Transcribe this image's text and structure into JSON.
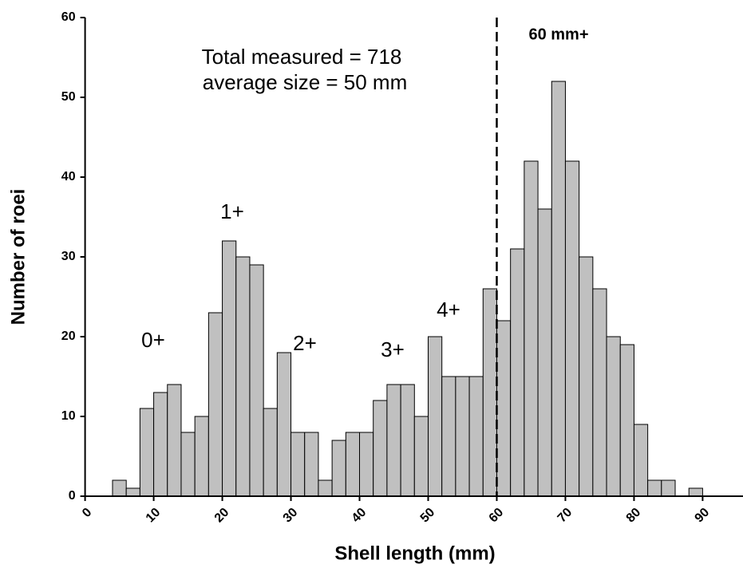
{
  "chart_data": {
    "type": "histogram",
    "x_label": "Shell length (mm)",
    "y_label": "Number of roei",
    "bins": [
      4,
      6,
      8,
      10,
      12,
      14,
      16,
      18,
      20,
      22,
      24,
      26,
      28,
      30,
      32,
      34,
      36,
      38,
      40,
      42,
      44,
      46,
      48,
      50,
      52,
      54,
      56,
      58,
      60,
      62,
      64,
      66,
      68,
      70,
      72,
      74,
      76,
      78,
      80,
      82,
      84,
      86,
      88,
      90
    ],
    "counts": [
      2,
      1,
      11,
      13,
      14,
      8,
      10,
      23,
      32,
      30,
      29,
      11,
      18,
      8,
      8,
      2,
      7,
      8,
      8,
      12,
      14,
      14,
      10,
      20,
      15,
      15,
      15,
      26,
      22,
      31,
      42,
      36,
      52,
      42,
      30,
      26,
      20,
      19,
      9,
      2,
      2,
      0,
      1
    ],
    "color": "#c0c0c0",
    "xlim": [
      0,
      96
    ],
    "ylim": [
      0,
      60
    ],
    "xticks": [
      0,
      10,
      20,
      30,
      40,
      50,
      60,
      70,
      80,
      90
    ],
    "yticks": [
      0,
      10,
      20,
      30,
      40,
      50,
      60
    ],
    "reference_line": 60,
    "annotations": [
      "Total measured = 718",
      " average size = 50 mm",
      "60 mm+",
      "0+",
      "1+",
      "2+",
      "3+",
      "4+"
    ]
  }
}
